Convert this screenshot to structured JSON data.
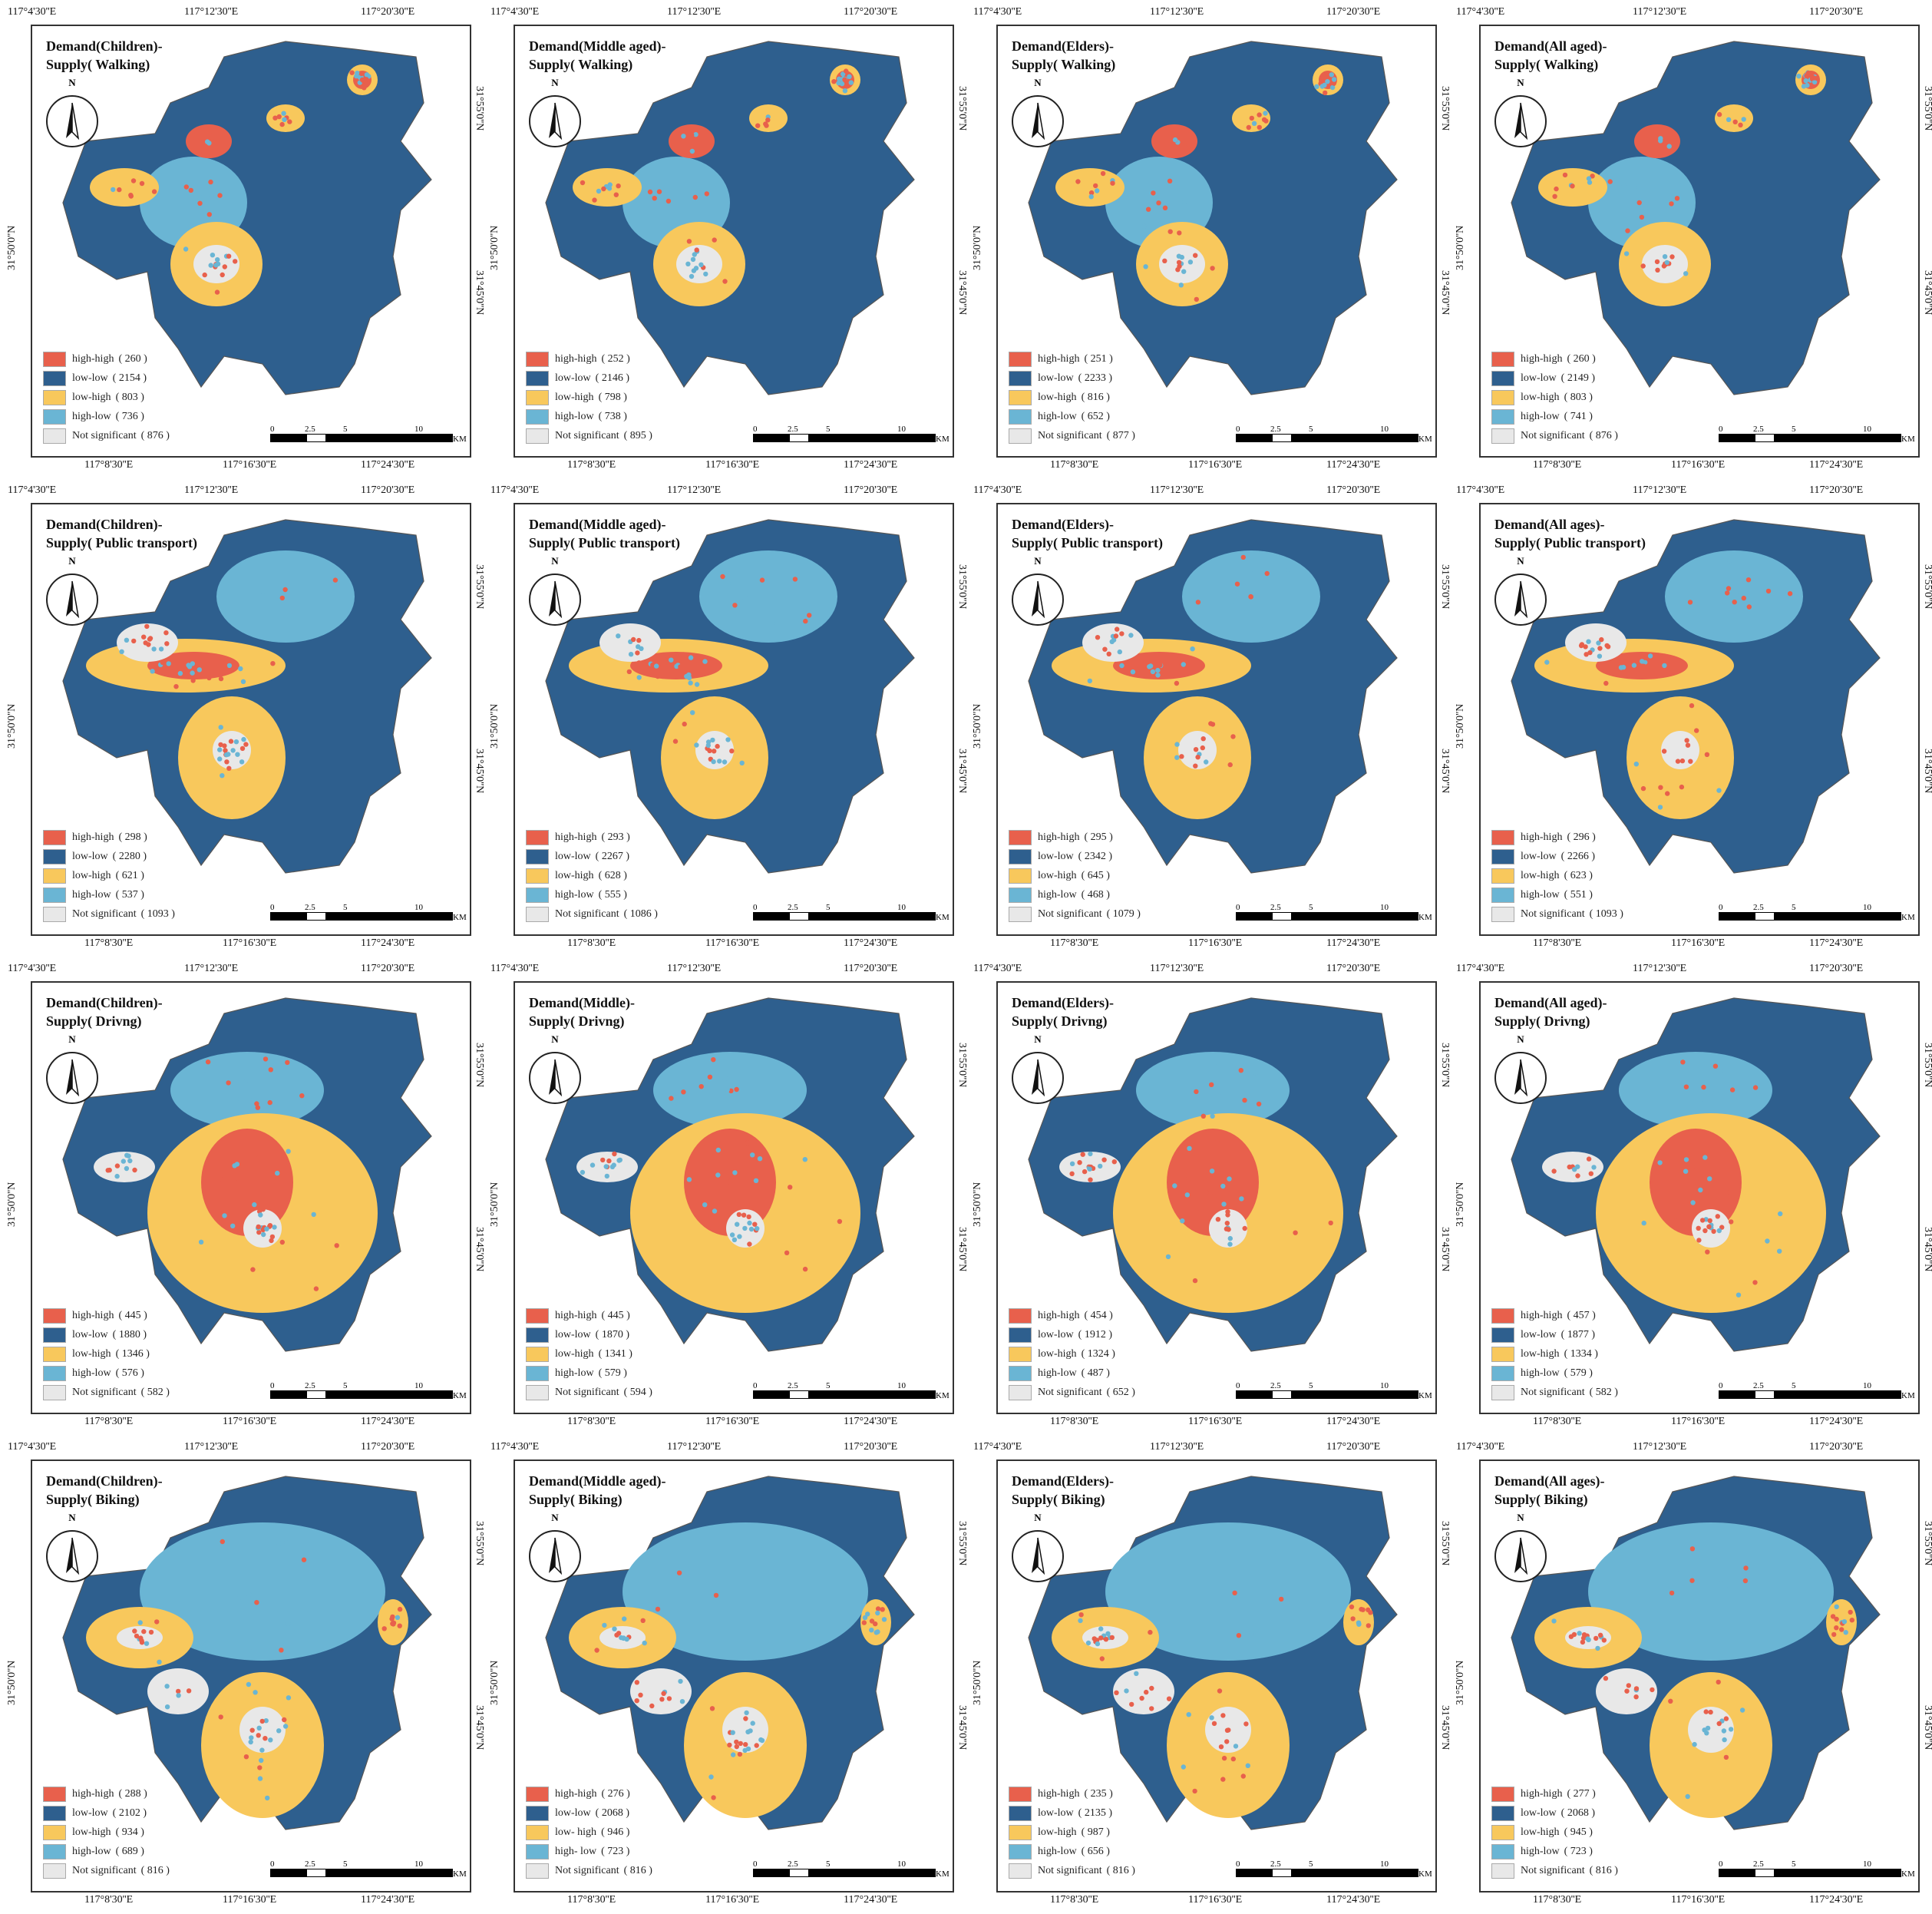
{
  "colors": {
    "high_high": "#e8604c",
    "low_low": "#2e5f8e",
    "low_high": "#f8c85c",
    "high_low": "#6ab5d4",
    "not_significant": "#e8e8e8"
  },
  "scale_labels": [
    "0",
    "2.5",
    "5",
    "10",
    "KM"
  ],
  "north_label": "N",
  "panels": [
    {
      "t1": "Demand(Children)-",
      "t2": "Supply( Walking)",
      "tx": [
        "117°4'30''E",
        "117°12'30''E",
        "117°20'30''E"
      ],
      "bx": [
        "117°8'30''E",
        "117°16'30''E",
        "117°24'30''E"
      ],
      "ly": "31°50'0''N",
      "ry": [
        "31°55'0''N",
        "31°45'0''N"
      ],
      "legend": [
        {
          "k": "high-high",
          "v": "( 260 )"
        },
        {
          "k": "low-low",
          "v": "( 2154 )"
        },
        {
          "k": "low-high",
          "v": "( 803 )"
        },
        {
          "k": "high-low",
          "v": "( 736 )"
        },
        {
          "k": "Not significant",
          "v": "( 876 )"
        }
      ]
    },
    {
      "t1": "Demand(Middle aged)-",
      "t2": "Supply( Walking)",
      "tx": [
        "117°4'30''E",
        "117°12'30''E",
        "117°20'30''E"
      ],
      "bx": [
        "117°8'30''E",
        "117°16'30''E",
        "117°24'30''E"
      ],
      "ly": "31°50'0''N",
      "ry": [
        "31°55'0''N",
        "31°45'0''N"
      ],
      "legend": [
        {
          "k": "high-high",
          "v": "( 252 )"
        },
        {
          "k": "low-low",
          "v": "( 2146 )"
        },
        {
          "k": "low-high",
          "v": "( 798 )"
        },
        {
          "k": "high-low",
          "v": "( 738 )"
        },
        {
          "k": "Not significant",
          "v": "( 895 )"
        }
      ]
    },
    {
      "t1": "Demand(Elders)-",
      "t2": "Supply( Walking)",
      "tx": [
        "117°4'30''E",
        "117°12'30''E",
        "117°20'30''E"
      ],
      "bx": [
        "117°8'30''E",
        "117°16'30''E",
        "117°24'30''E"
      ],
      "ly": "31°50'0''N",
      "ry": [
        "31°55'0''N",
        "31°45'0''N"
      ],
      "legend": [
        {
          "k": "high-high",
          "v": "( 251 )"
        },
        {
          "k": "low-low",
          "v": "( 2233 )"
        },
        {
          "k": "low-high",
          "v": "( 816 )"
        },
        {
          "k": "high-low",
          "v": "( 652 )"
        },
        {
          "k": "Not significant",
          "v": "( 877 )"
        }
      ]
    },
    {
      "t1": "Demand(All aged)-",
      "t2": "Supply( Walking)",
      "tx": [
        "117°4'30''E",
        "117°12'30''E",
        "117°20'30''E"
      ],
      "bx": [
        "117°8'30''E",
        "117°16'30''E",
        "117°24'30''E"
      ],
      "ly": "31°50'0''N",
      "ry": [
        "31°55'0''N",
        "31°45'0''N"
      ],
      "legend": [
        {
          "k": "high-high",
          "v": "( 260 )"
        },
        {
          "k": "low-low",
          "v": "( 2149 )"
        },
        {
          "k": "low-high",
          "v": "( 803 )"
        },
        {
          "k": "high-low",
          "v": "( 741 )"
        },
        {
          "k": "Not significant",
          "v": "( 876 )"
        }
      ]
    },
    {
      "t1": "Demand(Children)-",
      "t2": "Supply( Public transport)",
      "tx": [
        "117°4'30''E",
        "117°12'30''E",
        "117°20'30''E"
      ],
      "bx": [
        "117°8'30''E",
        "117°16'30''E",
        "117°24'30''E"
      ],
      "ly": "31°50'0''N",
      "ry": [
        "31°55'0''N",
        "31°45'0''N"
      ],
      "legend": [
        {
          "k": "high-high",
          "v": "( 298 )"
        },
        {
          "k": "low-low",
          "v": "( 2280 )"
        },
        {
          "k": "low-high",
          "v": "( 621 )"
        },
        {
          "k": "high-low",
          "v": "( 537 )"
        },
        {
          "k": "Not significant",
          "v": "( 1093 )"
        }
      ]
    },
    {
      "t1": "Demand(Middle aged)-",
      "t2": "Supply( Public transport)",
      "tx": [
        "117°4'30''E",
        "117°12'30''E",
        "117°20'30''E"
      ],
      "bx": [
        "117°8'30''E",
        "117°16'30''E",
        "117°24'30''E"
      ],
      "ly": "31°50'0''N",
      "ry": [
        "31°55'0''N",
        "31°45'0''N"
      ],
      "legend": [
        {
          "k": "high-high",
          "v": "( 293 )"
        },
        {
          "k": "low-low",
          "v": "( 2267 )"
        },
        {
          "k": "low-high",
          "v": "( 628 )"
        },
        {
          "k": "high-low",
          "v": "( 555 )"
        },
        {
          "k": "Not significant",
          "v": "( 1086 )"
        }
      ]
    },
    {
      "t1": "Demand(Elders)-",
      "t2": "Supply( Public transport)",
      "tx": [
        "117°4'30''E",
        "117°12'30''E",
        "117°20'30''E"
      ],
      "bx": [
        "117°8'30''E",
        "117°16'30''E",
        "117°24'30''E"
      ],
      "ly": "31°50'0''N",
      "ry": [
        "31°55'0''N",
        "31°45'0''N"
      ],
      "legend": [
        {
          "k": "high-high",
          "v": "( 295 )"
        },
        {
          "k": "low-low",
          "v": "( 2342 )"
        },
        {
          "k": "low-high",
          "v": "( 645 )"
        },
        {
          "k": "high-low",
          "v": "( 468 )"
        },
        {
          "k": "Not significant",
          "v": "( 1079 )"
        }
      ]
    },
    {
      "t1": "Demand(All ages)-",
      "t2": "Supply( Public transport)",
      "tx": [
        "117°4'30''E",
        "117°12'30''E",
        "117°20'30''E"
      ],
      "bx": [
        "117°8'30''E",
        "117°16'30''E",
        "117°24'30''E"
      ],
      "ly": "31°50'0''N",
      "ry": [
        "31°55'0''N",
        "31°45'0''N"
      ],
      "legend": [
        {
          "k": "high-high",
          "v": "( 296 )"
        },
        {
          "k": "low-low",
          "v": "( 2266 )"
        },
        {
          "k": "low-high",
          "v": "( 623 )"
        },
        {
          "k": "high-low",
          "v": "( 551 )"
        },
        {
          "k": "Not significant",
          "v": "( 1093 )"
        }
      ]
    },
    {
      "t1": "Demand(Children)-",
      "t2": "Supply( Drivng)",
      "tx": [
        "117°4'30''E",
        "117°12'30''E",
        "117°20'30''E"
      ],
      "bx": [
        "117°8'30''E",
        "117°16'30''E",
        "117°24'30''E"
      ],
      "ly": "31°50'0''N",
      "ry": [
        "31°55'0''N",
        "31°45'0''N"
      ],
      "legend": [
        {
          "k": "high-high",
          "v": "( 445 )"
        },
        {
          "k": "low-low",
          "v": "( 1880 )"
        },
        {
          "k": "low-high",
          "v": "( 1346 )"
        },
        {
          "k": "high-low",
          "v": "( 576 )"
        },
        {
          "k": "Not significant",
          "v": "( 582 )"
        }
      ]
    },
    {
      "t1": "Demand(Middle)-",
      "t2": "Supply( Drivng)",
      "tx": [
        "117°4'30''E",
        "117°12'30''E",
        "117°20'30''E"
      ],
      "bx": [
        "117°8'30''E",
        "117°16'30''E",
        "117°24'30''E"
      ],
      "ly": "31°50'0''N",
      "ry": [
        "31°55'0''N",
        "31°45'0''N"
      ],
      "legend": [
        {
          "k": "high-high",
          "v": "( 445 )"
        },
        {
          "k": "low-low",
          "v": "( 1870 )"
        },
        {
          "k": "low-high",
          "v": "( 1341 )"
        },
        {
          "k": "high-low",
          "v": "( 579 )"
        },
        {
          "k": "Not significant",
          "v": "( 594 )"
        }
      ]
    },
    {
      "t1": "Demand(Elders)-",
      "t2": "Supply( Drivng)",
      "tx": [
        "117°4'30''E",
        "117°12'30''E",
        "117°20'30''E"
      ],
      "bx": [
        "117°8'30''E",
        "117°16'30''E",
        "117°24'30''E"
      ],
      "ly": "31°50'0''N",
      "ry": [
        "31°55'0''N",
        "31°45'0''N"
      ],
      "legend": [
        {
          "k": "high-high",
          "v": "( 454 )"
        },
        {
          "k": "low-low",
          "v": "( 1912 )"
        },
        {
          "k": "low-high",
          "v": "( 1324 )"
        },
        {
          "k": "high-low",
          "v": "( 487 )"
        },
        {
          "k": "Not significant",
          "v": "( 652 )"
        }
      ]
    },
    {
      "t1": "Demand(All aged)-",
      "t2": "Supply( Drivng)",
      "tx": [
        "117°4'30''E",
        "117°12'30''E",
        "117°20'30''E"
      ],
      "bx": [
        "117°8'30''E",
        "117°16'30''E",
        "117°24'30''E"
      ],
      "ly": "31°50'0''N",
      "ry": [
        "31°55'0''N",
        "31°45'0''N"
      ],
      "legend": [
        {
          "k": "high-high",
          "v": "( 457 )"
        },
        {
          "k": "low-low",
          "v": "( 1877 )"
        },
        {
          "k": "low-high",
          "v": "( 1334 )"
        },
        {
          "k": "high-low",
          "v": "( 579 )"
        },
        {
          "k": "Not significant",
          "v": "( 582 )"
        }
      ]
    },
    {
      "t1": "Demand(Children)-",
      "t2": "Supply( Biking)",
      "tx": [
        "117°4'30''E",
        "117°12'30''E",
        "117°20'30''E"
      ],
      "bx": [
        "117°8'30''E",
        "117°16'30''E",
        "117°24'30''E"
      ],
      "ly": "31°50'0''N",
      "ry": [
        "31°55'0''N",
        "31°45'0''N"
      ],
      "legend": [
        {
          "k": "high-high",
          "v": "( 288 )"
        },
        {
          "k": "low-low",
          "v": "( 2102 )"
        },
        {
          "k": "low-high",
          "v": "( 934 )"
        },
        {
          "k": "high-low",
          "v": "( 689 )"
        },
        {
          "k": "Not significant",
          "v": "( 816 )"
        }
      ]
    },
    {
      "t1": "Demand(Middle aged)-",
      "t2": "Supply( Biking)",
      "tx": [
        "117°4'30''E",
        "117°12'30''E",
        "117°20'30''E"
      ],
      "bx": [
        "117°8'30''E",
        "117°16'30''E",
        "117°24'30''E"
      ],
      "ly": "31°50'0''N",
      "ry": [
        "31°55'0''N",
        "31°45'0''N"
      ],
      "legend": [
        {
          "k": "high-high",
          "v": "( 276 )"
        },
        {
          "k": "low-low",
          "v": "( 2068 )"
        },
        {
          "k": "low- high",
          "v": "( 946 )"
        },
        {
          "k": "high- low",
          "v": "( 723 )"
        },
        {
          "k": "Not significant",
          "v": "( 816 )"
        }
      ]
    },
    {
      "t1": "Demand(Elders)-",
      "t2": "Supply( Biking)",
      "tx": [
        "117°4'30''E",
        "117°12'30''E",
        "117°20'30''E"
      ],
      "bx": [
        "117°8'30''E",
        "117°16'30''E",
        "117°24'30''E"
      ],
      "ly": "31°50'0''N",
      "ry": [
        "31°55'0''N",
        "31°45'0''N"
      ],
      "legend": [
        {
          "k": "high-high",
          "v": "( 235 )"
        },
        {
          "k": "low-low",
          "v": "( 2135 )"
        },
        {
          "k": "low-high",
          "v": "( 987 )"
        },
        {
          "k": "high-low",
          "v": "( 656 )"
        },
        {
          "k": "Not significant",
          "v": "( 816 )"
        }
      ]
    },
    {
      "t1": "Demand(All ages)-",
      "t2": "Supply( Biking)",
      "tx": [
        "117°4'30''E",
        "117°12'30''E",
        "117°20'30''E"
      ],
      "bx": [
        "117°8'30''E",
        "117°16'30''E",
        "117°24'30''E"
      ],
      "ly": "31°50'0''N",
      "ry": [
        "31°55'0''N",
        "31°45'0''N"
      ],
      "legend": [
        {
          "k": "high-high",
          "v": "( 277 )"
        },
        {
          "k": "low-low",
          "v": "( 2068 )"
        },
        {
          "k": "low-high",
          "v": "( 945 )"
        },
        {
          "k": "high-low",
          "v": "( 723 )"
        },
        {
          "k": "Not significant",
          "v": "( 816 )"
        }
      ]
    }
  ]
}
